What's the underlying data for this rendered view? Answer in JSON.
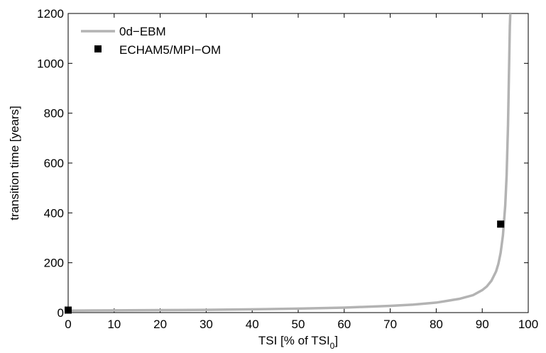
{
  "chart_data": {
    "type": "line",
    "xlabel": "TSI [% of TSI",
    "xlabel_sub": "0",
    "xlabel_close": "]",
    "ylabel": "transition time [years]",
    "xlim": [
      0,
      100
    ],
    "ylim": [
      0,
      1200
    ],
    "xticks": [
      0,
      10,
      20,
      30,
      40,
      50,
      60,
      70,
      80,
      90,
      100
    ],
    "yticks": [
      0,
      200,
      400,
      600,
      800,
      1000,
      1200
    ],
    "grid": false,
    "legend_position": "top-left",
    "series": [
      {
        "name": "0d−EBM",
        "kind": "line",
        "color": "#b3b3b3",
        "x": [
          0,
          10,
          20,
          30,
          40,
          50,
          60,
          70,
          75,
          80,
          85,
          88,
          90,
          91,
          92,
          93,
          93.5,
          94,
          94.5,
          95,
          95.3,
          95.6,
          95.8,
          96.0,
          96.1
        ],
        "y": [
          8,
          9,
          10,
          11,
          13,
          16,
          20,
          27,
          32,
          40,
          55,
          70,
          90,
          105,
          128,
          165,
          195,
          240,
          310,
          430,
          550,
          750,
          950,
          1150,
          1200
        ]
      },
      {
        "name": "ECHAM5/MPI−OM",
        "kind": "marker",
        "color": "#000000",
        "x": [
          0,
          94
        ],
        "y": [
          10,
          355
        ]
      }
    ]
  }
}
